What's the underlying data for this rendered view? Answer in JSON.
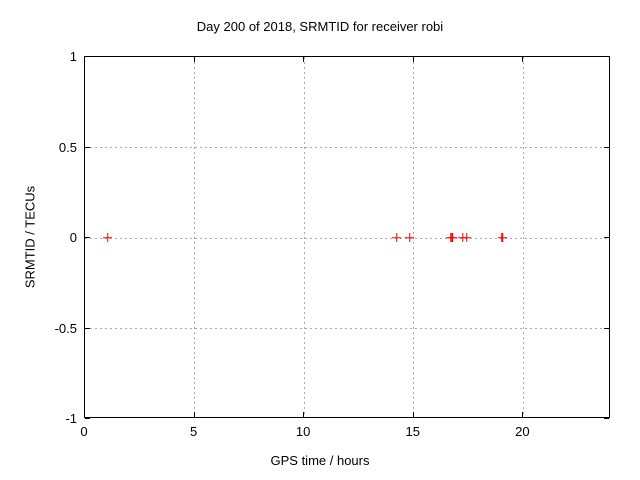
{
  "window": {
    "background_color": "#ffffff",
    "text_color": "#000000"
  },
  "chart_data": {
    "type": "scatter",
    "title": "Day 200 of 2018, SRMTID for receiver robi",
    "xlabel": "GPS time / hours",
    "ylabel": "SRMTID / TECUs",
    "xlim": [
      0,
      24
    ],
    "ylim": [
      -1,
      1
    ],
    "xticks": [
      0,
      5,
      10,
      15,
      20
    ],
    "xtick_labels": [
      "0",
      "5",
      "10",
      "15",
      "20"
    ],
    "yticks": [
      -1,
      -0.5,
      0,
      0.5,
      1
    ],
    "ytick_labels": [
      "-1",
      "-0.5",
      "0",
      "0.5",
      "1"
    ],
    "grid": true,
    "grid_style": "dashed",
    "grid_color": "#a9a9a9",
    "border_color": "#000000",
    "legend_position": "none",
    "marker": "plus",
    "marker_color": "#ff0000",
    "series": [
      {
        "name": "SRMTID",
        "points": [
          {
            "x": 1.05,
            "y": 0
          },
          {
            "x": 14.25,
            "y": 0
          },
          {
            "x": 14.85,
            "y": 0
          },
          {
            "x": 16.7,
            "y": 0
          },
          {
            "x": 16.78,
            "y": 0
          },
          {
            "x": 17.25,
            "y": 0
          },
          {
            "x": 17.45,
            "y": 0
          },
          {
            "x": 19.05,
            "y": 0
          }
        ]
      }
    ]
  }
}
